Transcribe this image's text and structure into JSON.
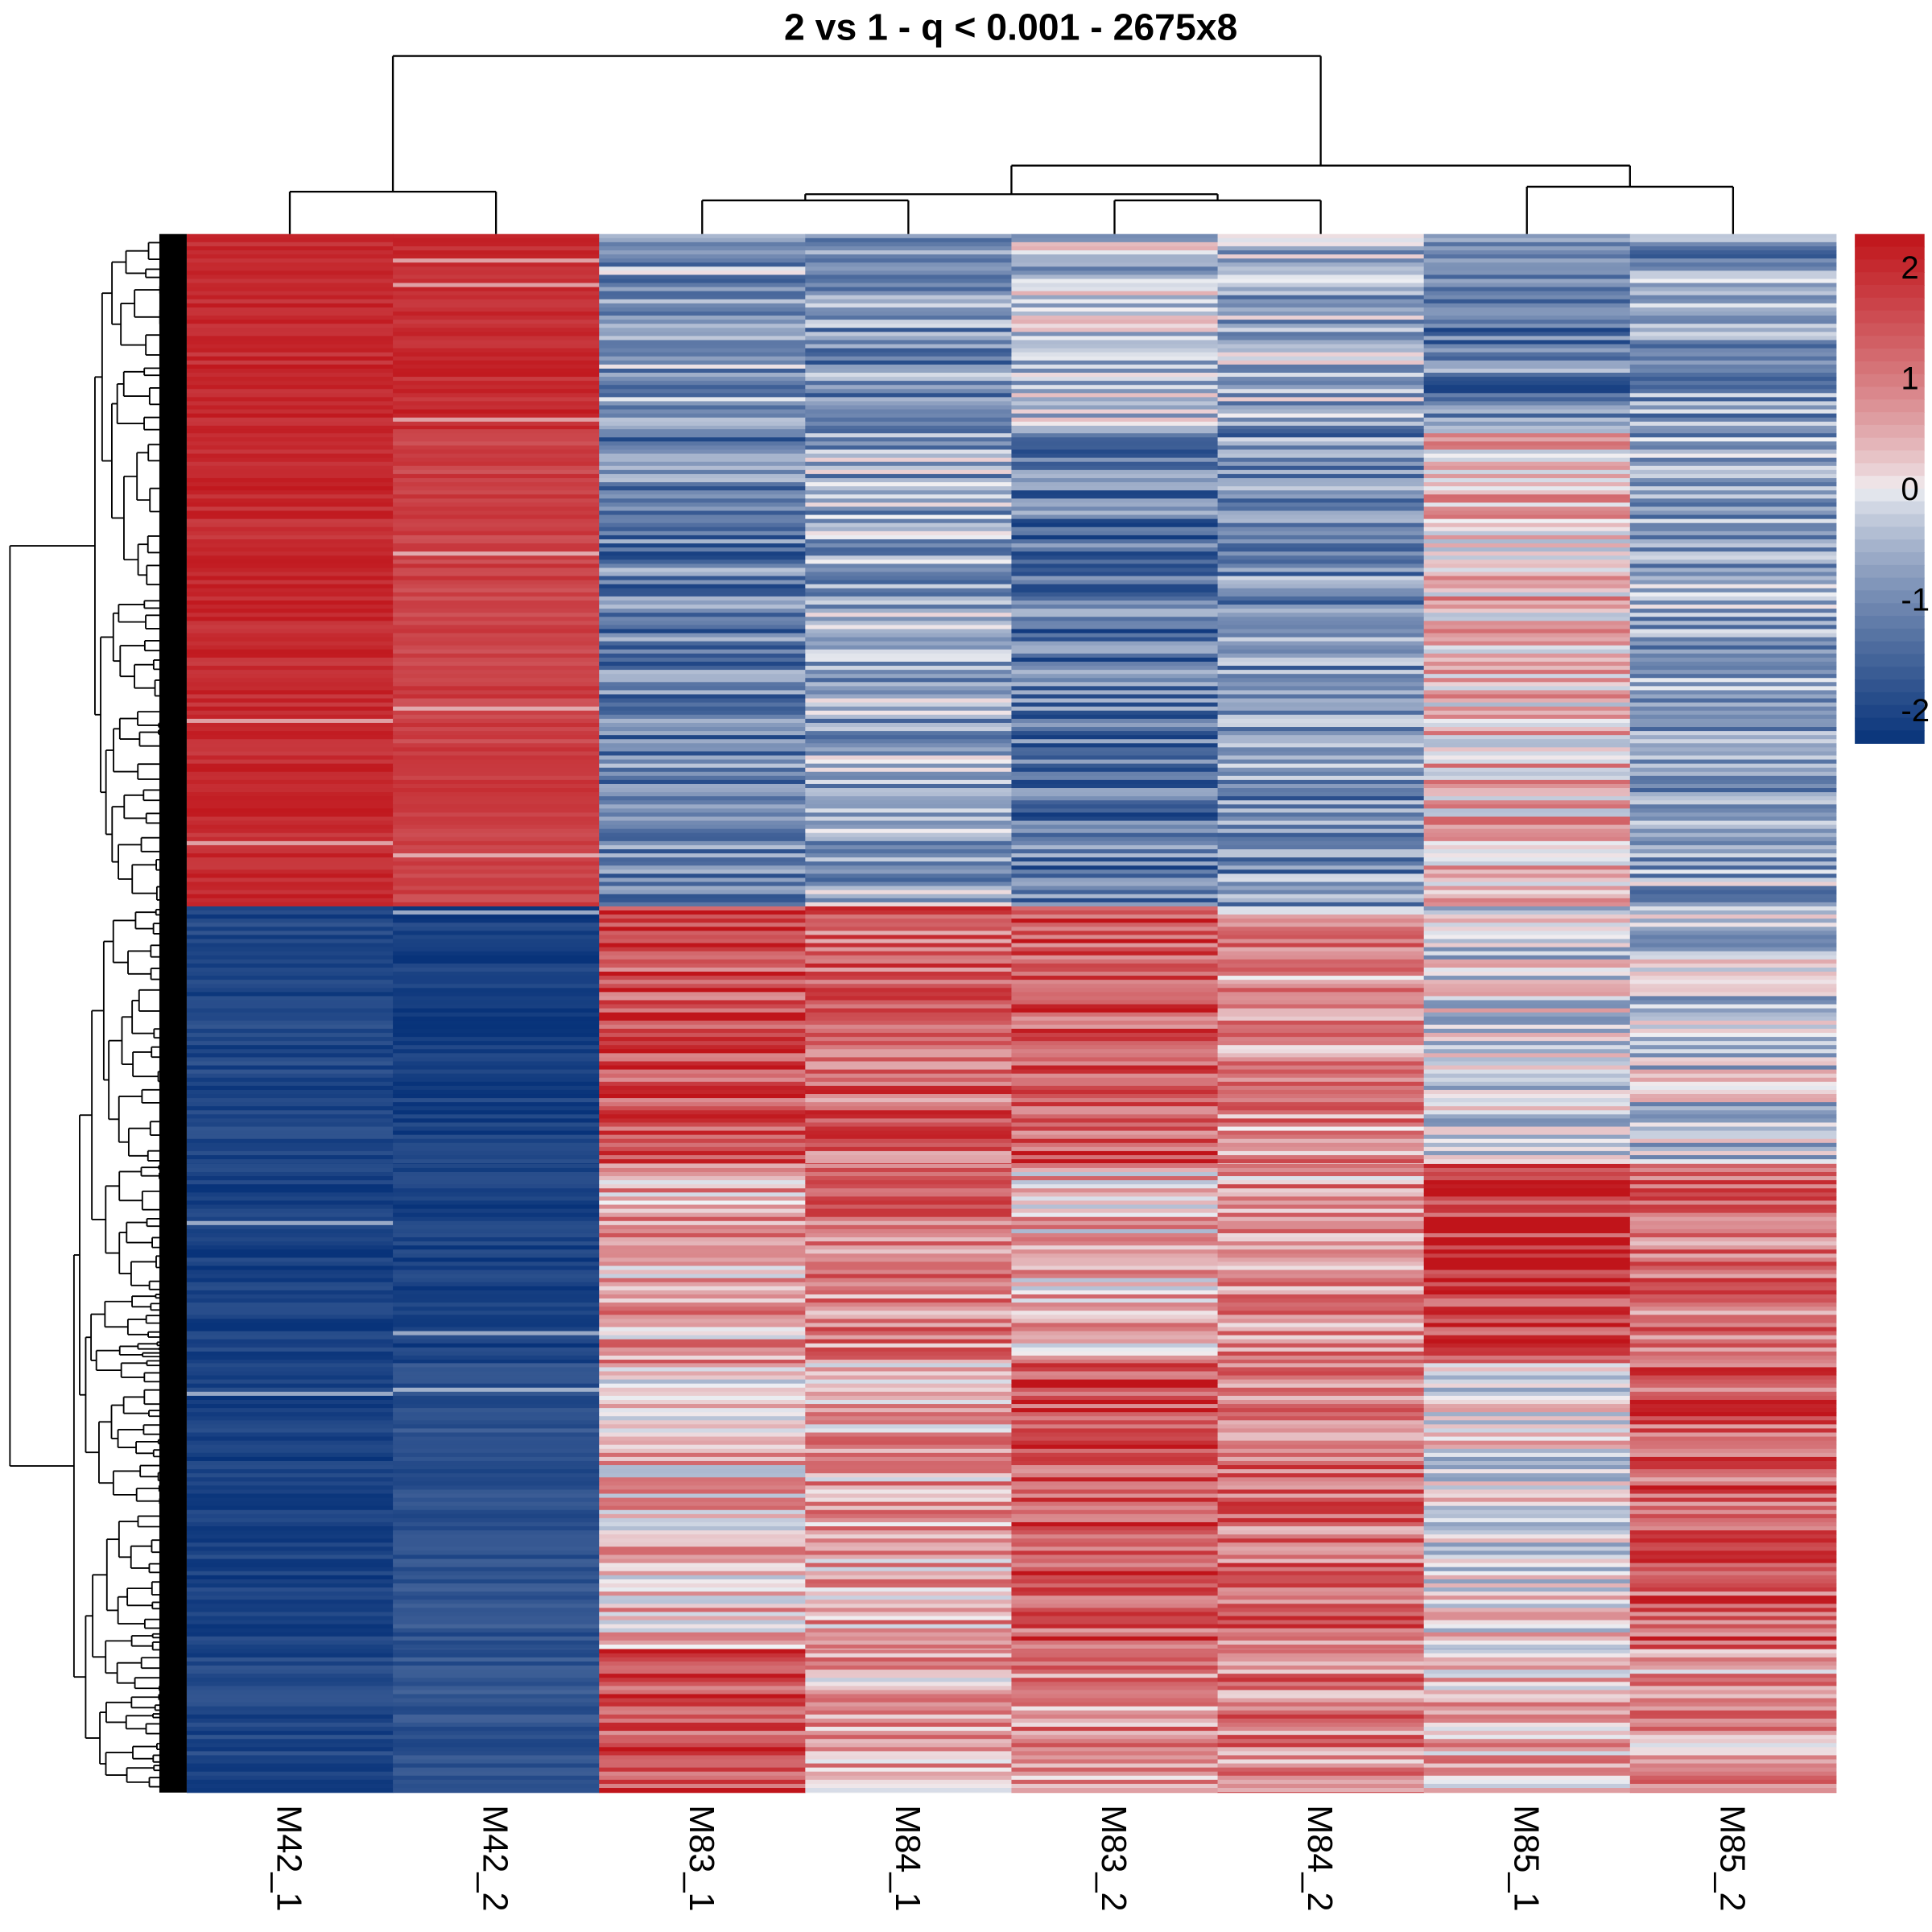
{
  "chart_data": {
    "type": "heatmap",
    "title": "2 vs 1 - q < 0.001 - 2675x8",
    "n_rows": 2675,
    "columns": [
      "M42_1",
      "M42_2",
      "M83_1",
      "M84_1",
      "M83_2",
      "M84_2",
      "M85_1",
      "M85_2"
    ],
    "column_dendrogram": {
      "merges": [
        {
          "left": "M42_1",
          "right": "M42_2",
          "height": 34
        },
        {
          "left": "M83_1",
          "right": "M84_1",
          "height": 27
        },
        {
          "left": "M83_2",
          "right": "M84_2",
          "height": 27
        },
        {
          "left": "M83_1+M84_1",
          "right": "M83_2+M84_2",
          "height": 32
        },
        {
          "left": "M85_1",
          "right": "M85_2",
          "height": 38
        },
        {
          "left": "M83/M84",
          "right": "M85",
          "height": 55
        },
        {
          "left": "M42",
          "right": "M83/M84/M85",
          "height": 143
        }
      ]
    },
    "row_blocks": [
      {
        "rows": [
          0,
          335
        ],
        "mean": [
          2.0,
          2.0,
          -0.8,
          -1.0,
          -0.4,
          -0.6,
          -1.2,
          -0.9
        ]
      },
      {
        "rows": [
          335,
          1154
        ],
        "mean": [
          2.0,
          1.7,
          -1.2,
          -0.7,
          -1.3,
          -1.0,
          0.4,
          -0.7
        ]
      },
      {
        "rows": [
          1154,
          1596
        ],
        "mean": [
          -2.0,
          -2.1,
          1.6,
          1.3,
          1.5,
          0.8,
          -0.2,
          -0.3
        ]
      },
      {
        "rows": [
          1596,
          1938
        ],
        "mean": [
          -2.1,
          -2.1,
          0.6,
          1.0,
          0.4,
          0.8,
          1.8,
          1.1
        ]
      },
      {
        "rows": [
          1938,
          2429
        ],
        "mean": [
          -2.1,
          -1.8,
          0.4,
          0.6,
          1.5,
          1.2,
          0.0,
          1.4
        ]
      },
      {
        "rows": [
          2429,
          2675
        ],
        "mean": [
          -2.0,
          -1.8,
          1.6,
          0.6,
          0.9,
          1.0,
          0.5,
          0.7
        ]
      }
    ],
    "legend": {
      "range": [
        -2.3,
        2.3
      ],
      "ticks": [
        "2",
        "1",
        "0",
        "-1",
        "-2"
      ],
      "tick_values": [
        2,
        1,
        0,
        -1,
        -2
      ],
      "colors": {
        "low": "#08337a",
        "mid": "#f1f1f4",
        "high": "#c0141a"
      }
    }
  }
}
